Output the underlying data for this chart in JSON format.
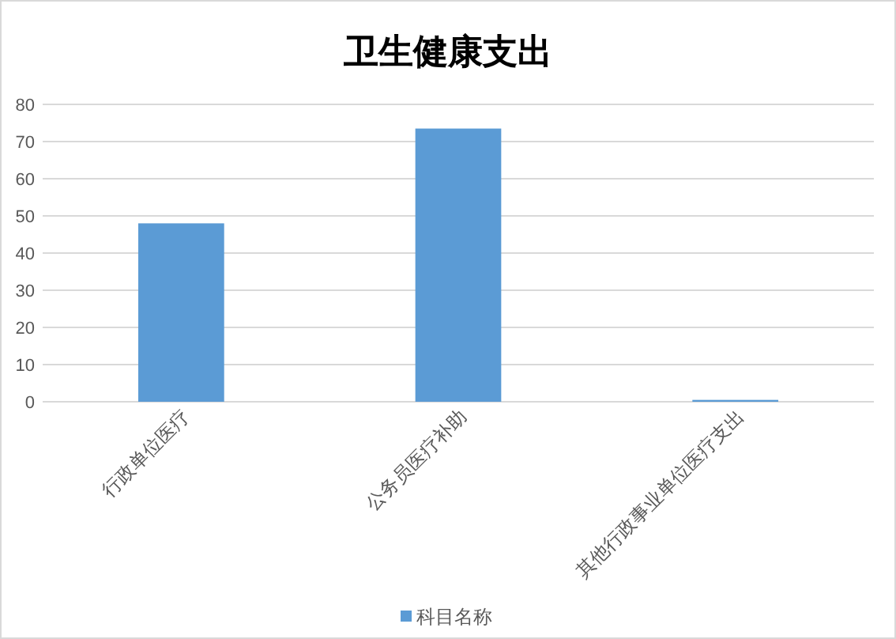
{
  "chart_data": {
    "type": "bar",
    "title": "卫生健康支出",
    "categories": [
      "行政单位医疗",
      "公务员医疗补助",
      "其他行政事业单位医疗支出"
    ],
    "series": [
      {
        "name": "科目名称",
        "color": "#5b9bd5",
        "values": [
          48,
          73.5,
          0.5
        ]
      }
    ],
    "ylim": [
      0,
      80
    ],
    "yticks": [
      0,
      10,
      20,
      30,
      40,
      50,
      60,
      70,
      80
    ],
    "grid": "y",
    "legend": "bottom"
  }
}
